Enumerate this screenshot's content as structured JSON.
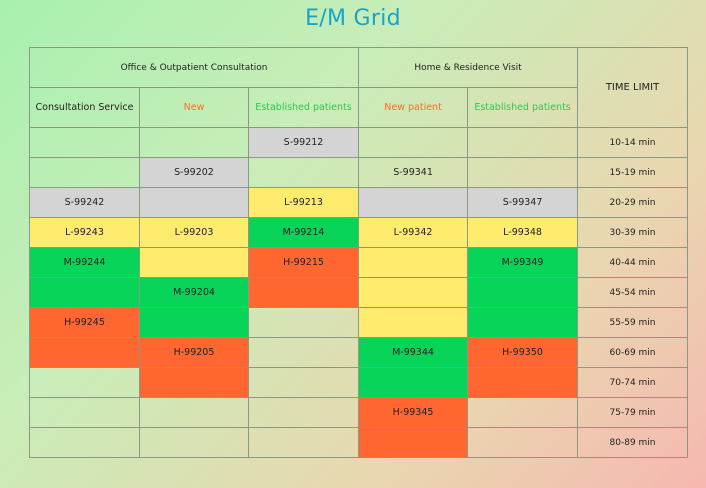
{
  "title": "E/M Grid",
  "headers": {
    "office_group": "Office & Outpatient Consultation",
    "home_group": "Home & Residence Visit",
    "time_limit": "TIME LIMIT",
    "consultation_service": "Consultation Service",
    "office_new": "New",
    "office_established": "Established patients",
    "home_new": "New patient",
    "home_established": "Established patients"
  },
  "colors": {
    "title": "#1aa3c9",
    "gray": "#d4d4d4",
    "yellow": "#ffeb6e",
    "green": "#08d45a",
    "orange": "#ff6630",
    "new_label": "#ff6b2b",
    "established_label": "#1fcf50"
  },
  "rows": [
    {
      "time": "10-14 min",
      "cells": [
        {
          "text": "",
          "color": "none"
        },
        {
          "text": "",
          "color": "none"
        },
        {
          "text": "S-99212",
          "color": "gray"
        },
        {
          "text": "",
          "color": "none"
        },
        {
          "text": "",
          "color": "none"
        }
      ]
    },
    {
      "time": "15-19 min",
      "cells": [
        {
          "text": "",
          "color": "none"
        },
        {
          "text": "S-99202",
          "color": "gray"
        },
        {
          "text": "",
          "color": "none"
        },
        {
          "text": "S-99341",
          "color": "none"
        },
        {
          "text": "",
          "color": "none"
        }
      ]
    },
    {
      "time": "20-29 min",
      "cells": [
        {
          "text": "S-99242",
          "color": "gray"
        },
        {
          "text": "",
          "color": "gray"
        },
        {
          "text": "L-99213",
          "color": "yellow"
        },
        {
          "text": "",
          "color": "gray"
        },
        {
          "text": "S-99347",
          "color": "gray"
        }
      ]
    },
    {
      "time": "30-39 min",
      "cells": [
        {
          "text": "L-99243",
          "color": "yellow"
        },
        {
          "text": "L-99203",
          "color": "yellow"
        },
        {
          "text": "M-99214",
          "color": "green"
        },
        {
          "text": "L-99342",
          "color": "yellow"
        },
        {
          "text": "L-99348",
          "color": "yellow"
        }
      ]
    },
    {
      "time": "40-44 min",
      "cells": [
        {
          "text": "M-99244",
          "color": "green"
        },
        {
          "text": "",
          "color": "yellow"
        },
        {
          "text": "H-99215",
          "color": "orange"
        },
        {
          "text": "",
          "color": "yellow"
        },
        {
          "text": "M-99349",
          "color": "green"
        }
      ]
    },
    {
      "time": "45-54 min",
      "cells": [
        {
          "text": "",
          "color": "green"
        },
        {
          "text": "M-99204",
          "color": "green"
        },
        {
          "text": "",
          "color": "orange"
        },
        {
          "text": "",
          "color": "yellow"
        },
        {
          "text": "",
          "color": "green"
        }
      ]
    },
    {
      "time": "55-59 min",
      "cells": [
        {
          "text": "H-99245",
          "color": "orange"
        },
        {
          "text": "",
          "color": "green"
        },
        {
          "text": "",
          "color": "none"
        },
        {
          "text": "",
          "color": "yellow"
        },
        {
          "text": "",
          "color": "green"
        }
      ]
    },
    {
      "time": "60-69 min",
      "cells": [
        {
          "text": "",
          "color": "orange"
        },
        {
          "text": "H-99205",
          "color": "orange"
        },
        {
          "text": "",
          "color": "none"
        },
        {
          "text": "M-99344",
          "color": "green"
        },
        {
          "text": "H-99350",
          "color": "orange"
        }
      ]
    },
    {
      "time": "70-74 min",
      "cells": [
        {
          "text": "",
          "color": "none"
        },
        {
          "text": "",
          "color": "orange"
        },
        {
          "text": "",
          "color": "none"
        },
        {
          "text": "",
          "color": "green"
        },
        {
          "text": "",
          "color": "orange"
        }
      ]
    },
    {
      "time": "75-79 min",
      "cells": [
        {
          "text": "",
          "color": "none"
        },
        {
          "text": "",
          "color": "none"
        },
        {
          "text": "",
          "color": "none"
        },
        {
          "text": "H-99345",
          "color": "orange"
        },
        {
          "text": "",
          "color": "none"
        }
      ]
    },
    {
      "time": "80-89 min",
      "cells": [
        {
          "text": "",
          "color": "none"
        },
        {
          "text": "",
          "color": "none"
        },
        {
          "text": "",
          "color": "none"
        },
        {
          "text": "",
          "color": "orange"
        },
        {
          "text": "",
          "color": "none"
        }
      ]
    }
  ]
}
